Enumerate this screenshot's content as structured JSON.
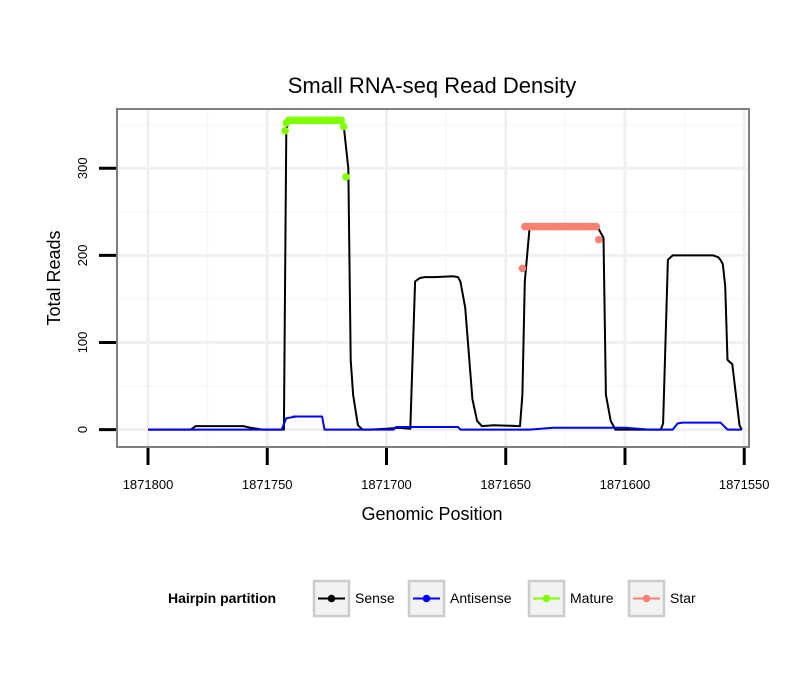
{
  "chart_data": {
    "type": "line",
    "title": "Small RNA-seq Read Density",
    "xlabel": "Genomic Position",
    "ylabel": "Total Reads",
    "x_reversed": true,
    "xlim": [
      1871813,
      1871548
    ],
    "ylim": [
      -20,
      368
    ],
    "x_ticks": [
      1871800,
      1871750,
      1871700,
      1871650,
      1871600,
      1871550
    ],
    "x_tick_labels": [
      "1871800",
      "1871750",
      "1871700",
      "1871650",
      "1871600",
      "1871550"
    ],
    "y_ticks": [
      0,
      100,
      200,
      300
    ],
    "y_tick_labels": [
      "0",
      "100",
      "200",
      "300"
    ],
    "grid": true,
    "legend": {
      "title": "Hairpin partition",
      "position": "bottom",
      "entries": [
        {
          "label": "Sense",
          "color": "#000000"
        },
        {
          "label": "Antisense",
          "color": "#0000ff"
        },
        {
          "label": "Mature",
          "color": "#7fff00"
        },
        {
          "label": "Star",
          "color": "#fa8072"
        }
      ]
    },
    "series": [
      {
        "name": "Sense",
        "color": "#000000",
        "kind": "line",
        "x": [
          1871800,
          1871782,
          1871780,
          1871760,
          1871757,
          1871752,
          1871743,
          1871742,
          1871741,
          1871740,
          1871719,
          1871718,
          1871716,
          1871715,
          1871714,
          1871712,
          1871710,
          1871707,
          1871700,
          1871695,
          1871690,
          1871688,
          1871687,
          1871686,
          1871684,
          1871680,
          1871672,
          1871670,
          1871669,
          1871667,
          1871664,
          1871662,
          1871660,
          1871655,
          1871644,
          1871643,
          1871642,
          1871640,
          1871636,
          1871630,
          1871612,
          1871611,
          1871609,
          1871608,
          1871606,
          1871604,
          1871600,
          1871595,
          1871585,
          1871584,
          1871582,
          1871580,
          1871564,
          1871563,
          1871561,
          1871560,
          1871559,
          1871558,
          1871557,
          1871555,
          1871552,
          1871551
        ],
        "y": [
          0,
          0,
          4,
          4,
          2,
          0,
          0,
          345,
          352,
          355,
          355,
          350,
          300,
          80,
          40,
          5,
          0,
          0,
          1,
          2,
          1,
          170,
          172,
          174,
          175,
          175,
          176,
          175,
          170,
          140,
          35,
          10,
          4,
          5,
          4,
          40,
          170,
          232,
          233,
          233,
          233,
          230,
          220,
          40,
          10,
          0,
          0,
          0,
          0,
          7,
          195,
          200,
          200,
          200,
          198,
          195,
          190,
          165,
          80,
          75,
          5,
          0
        ]
      },
      {
        "name": "Antisense",
        "color": "#0000ff",
        "kind": "line",
        "x": [
          1871800,
          1871770,
          1871744,
          1871742,
          1871738,
          1871739,
          1871727,
          1871726,
          1871725,
          1871697,
          1871696,
          1871680,
          1871670,
          1871669,
          1871640,
          1871630,
          1871600,
          1871590,
          1871580,
          1871578,
          1871576,
          1871574,
          1871560,
          1871557,
          1871551
        ],
        "y": [
          0,
          0,
          0,
          13,
          15,
          15,
          15,
          0,
          0,
          0,
          3,
          3,
          3,
          0,
          0,
          2,
          2,
          0,
          0,
          7,
          8,
          8,
          8,
          0,
          0
        ]
      },
      {
        "name": "Mature",
        "color": "#7fff00",
        "kind": "points",
        "x": [
          1871742.5,
          1871742,
          1871741,
          1871740,
          1871739,
          1871738,
          1871737,
          1871736,
          1871735,
          1871734,
          1871733,
          1871732,
          1871731,
          1871730,
          1871729,
          1871728,
          1871727,
          1871726,
          1871725,
          1871724,
          1871723,
          1871722,
          1871721,
          1871720,
          1871719,
          1871718,
          1871717
        ],
        "y": [
          343,
          352,
          355,
          355,
          355,
          355,
          355,
          355,
          355,
          355,
          355,
          355,
          355,
          355,
          355,
          355,
          355,
          355,
          355,
          355,
          355,
          355,
          355,
          355,
          355,
          348,
          290
        ]
      },
      {
        "name": "Star",
        "color": "#fa8072",
        "kind": "points",
        "x": [
          1871643,
          1871642,
          1871641,
          1871640,
          1871639,
          1871638,
          1871637,
          1871636,
          1871635,
          1871634,
          1871633,
          1871632,
          1871631,
          1871630,
          1871629,
          1871628,
          1871627,
          1871626,
          1871625,
          1871624,
          1871623,
          1871622,
          1871621,
          1871620,
          1871619,
          1871618,
          1871617,
          1871616,
          1871615,
          1871614,
          1871613,
          1871612,
          1871611
        ],
        "y": [
          185,
          233,
          233,
          233,
          233,
          233,
          233,
          233,
          233,
          233,
          233,
          233,
          233,
          233,
          233,
          233,
          233,
          233,
          233,
          233,
          233,
          233,
          233,
          233,
          233,
          233,
          233,
          233,
          233,
          233,
          233,
          233,
          218
        ]
      }
    ]
  }
}
